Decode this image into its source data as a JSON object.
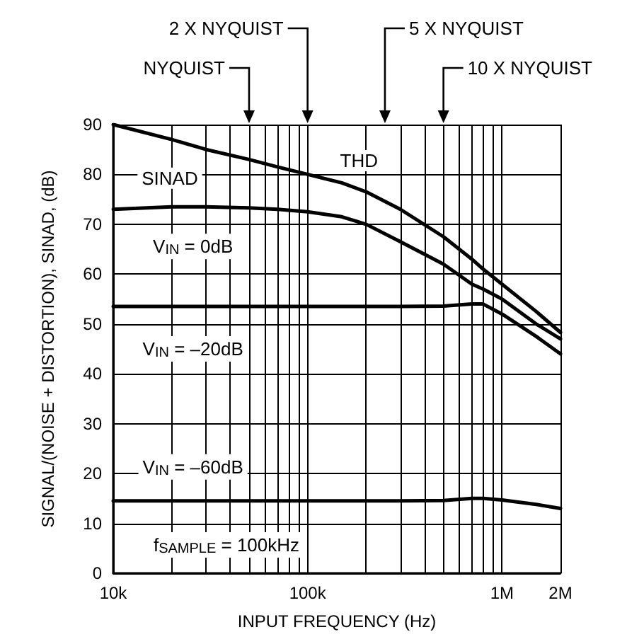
{
  "chart_data": {
    "type": "line",
    "xlabel": "INPUT FREQUENCY (Hz)",
    "ylabel": "SIGNAL/(NOISE + DISTORTION), SINAD, (dB)",
    "log": "x",
    "grid": true,
    "marker": "none",
    "line_style": "solid",
    "xlim": [
      10000,
      2000000
    ],
    "ylim": [
      0,
      90
    ],
    "xticks": [
      {
        "value": 10000,
        "label": "10k"
      },
      {
        "value": 20000,
        "label": null
      },
      {
        "value": 30000,
        "label": null
      },
      {
        "value": 40000,
        "label": null
      },
      {
        "value": 50000,
        "label": null
      },
      {
        "value": 60000,
        "label": null
      },
      {
        "value": 70000,
        "label": null
      },
      {
        "value": 80000,
        "label": null
      },
      {
        "value": 90000,
        "label": null
      },
      {
        "value": 100000,
        "label": "100k"
      },
      {
        "value": 200000,
        "label": null
      },
      {
        "value": 300000,
        "label": null
      },
      {
        "value": 400000,
        "label": null
      },
      {
        "value": 500000,
        "label": null
      },
      {
        "value": 600000,
        "label": null
      },
      {
        "value": 700000,
        "label": null
      },
      {
        "value": 800000,
        "label": null
      },
      {
        "value": 900000,
        "label": null
      },
      {
        "value": 1000000,
        "label": "1M"
      },
      {
        "value": 2000000,
        "label": "2M"
      }
    ],
    "yticks": [
      0,
      10,
      20,
      30,
      40,
      50,
      60,
      70,
      80,
      90
    ],
    "x": [
      10000,
      20000,
      30000,
      50000,
      70000,
      100000,
      150000,
      200000,
      300000,
      500000,
      700000,
      800000,
      1000000,
      1500000,
      2000000
    ],
    "series": [
      {
        "name": "THD",
        "color": "#000000",
        "values": [
          90,
          87,
          85,
          83,
          81.5,
          80,
          78.3,
          76.5,
          73,
          67.5,
          63,
          61,
          58,
          52.5,
          48.3
        ]
      },
      {
        "name": "V$_{IN}$ = 0dB",
        "color": "#000000",
        "values": [
          73,
          73.5,
          73.5,
          73.3,
          73,
          72.5,
          71.5,
          70,
          66.5,
          62,
          58,
          57,
          55,
          50,
          47
        ]
      },
      {
        "name": "V$_{IN}$ = –20dB",
        "color": "#000000",
        "values": [
          53.5,
          53.5,
          53.5,
          53.5,
          53.5,
          53.5,
          53.5,
          53.5,
          53.5,
          53.6,
          54,
          54,
          52,
          47.5,
          44
        ]
      },
      {
        "name": "V$_{IN}$ = –60dB",
        "color": "#000000",
        "values": [
          14.5,
          14.5,
          14.5,
          14.5,
          14.5,
          14.5,
          14.5,
          14.5,
          14.5,
          14.6,
          15,
          15,
          14.7,
          13.8,
          13
        ]
      }
    ],
    "ref_lines": [
      {
        "axis": "x",
        "value": 50000,
        "label": "NYQUIST"
      },
      {
        "axis": "x",
        "value": 100000,
        "label": "2 X NYQUIST"
      },
      {
        "axis": "x",
        "value": 250000,
        "label": "5 X NYQUIST"
      },
      {
        "axis": "x",
        "value": 500000,
        "label": "10 X NYQUIST"
      }
    ],
    "annotations": [
      "SINAD",
      "f$_{SAMPLE}$ = 100kHz"
    ]
  }
}
